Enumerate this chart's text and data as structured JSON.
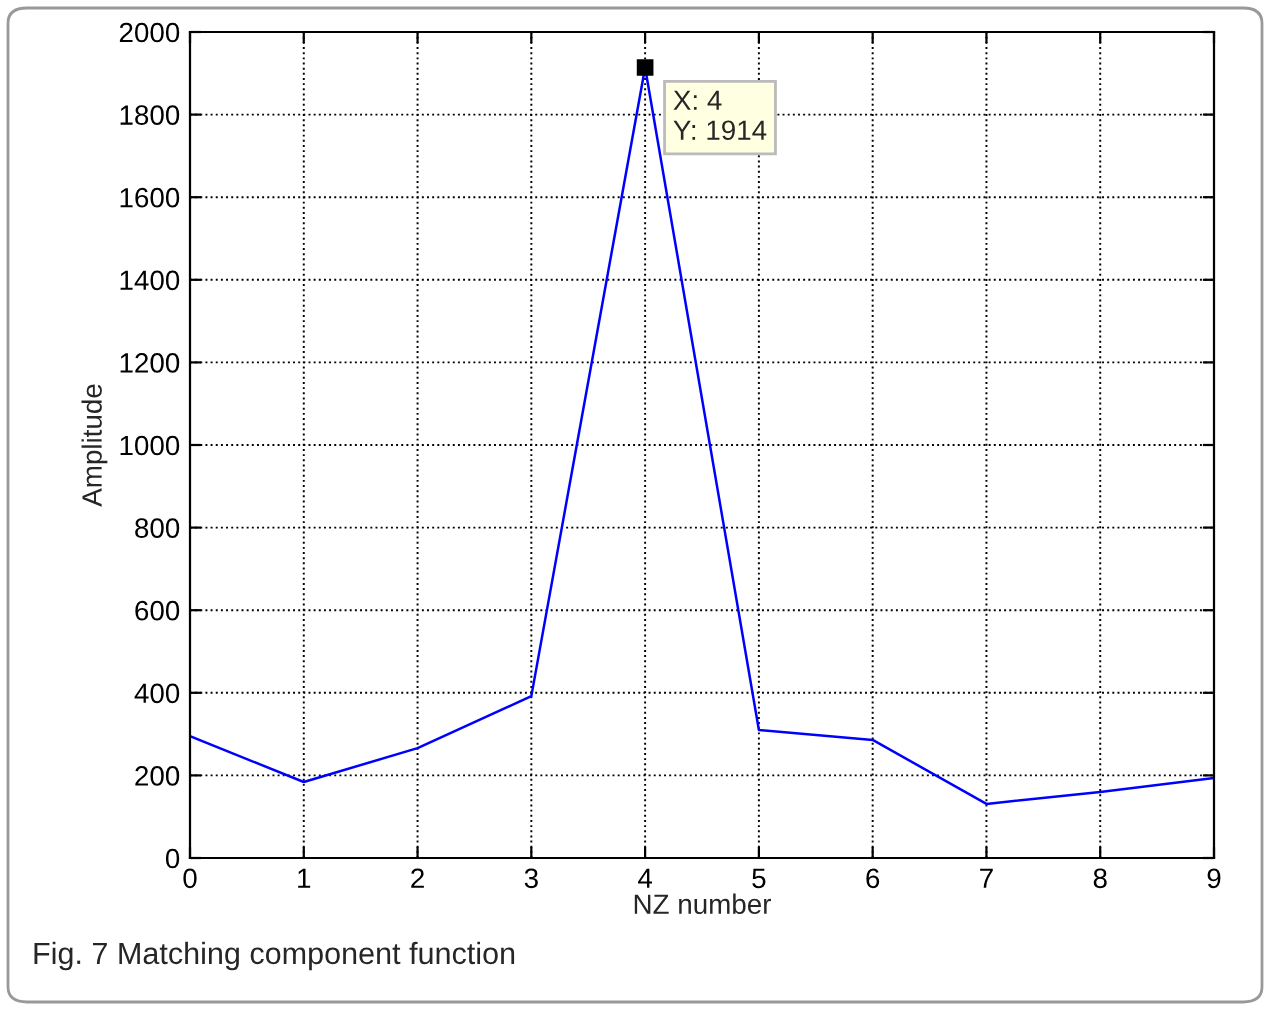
{
  "chart_data": {
    "type": "line",
    "xlabel": "NZ number",
    "ylabel": "Amplitude",
    "x": [
      0,
      1,
      2,
      3,
      4,
      5,
      6,
      7,
      8,
      9
    ],
    "series": [
      {
        "color": "#0000ff",
        "values": [
          295,
          184,
          266,
          392,
          1914,
          310,
          286,
          131,
          160,
          194
        ]
      }
    ],
    "xlim": [
      0,
      9
    ],
    "xticks": [
      0,
      1,
      2,
      3,
      4,
      5,
      6,
      7,
      8,
      9
    ],
    "ylim": [
      0,
      2000
    ],
    "yticks": [
      0,
      200,
      400,
      600,
      800,
      1000,
      1200,
      1400,
      1600,
      1800,
      2000
    ],
    "grid": true,
    "line_style": "solid",
    "marker": "none",
    "annotations": [
      {
        "text": "X: 4\nY: 1914",
        "x": 4,
        "y": 1914
      },
      "Fig. 7 Matching component function"
    ]
  }
}
